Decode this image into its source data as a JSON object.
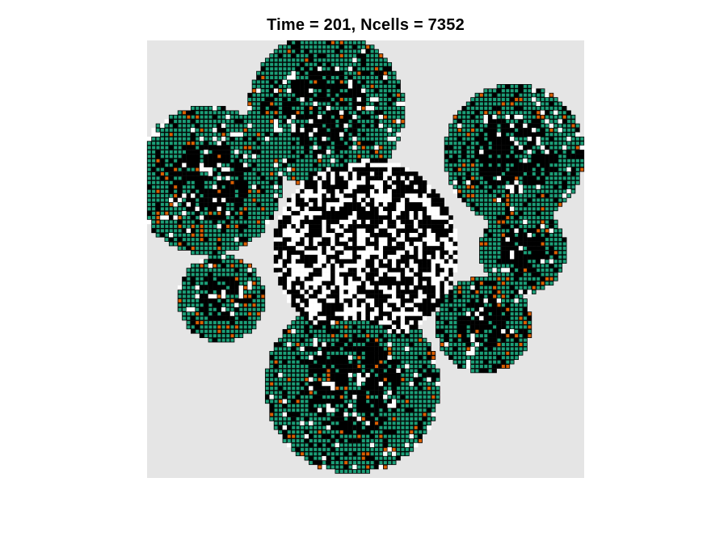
{
  "chart_data": {
    "type": "heatmap",
    "title": "Time = 201, Ncells = 7352",
    "xlabel": "",
    "ylabel": "",
    "axes_visible": false,
    "grid": false,
    "legend": "none",
    "time": 201,
    "ncells": 7352,
    "grid_size": [
      100,
      100
    ],
    "cell_states": [
      "empty",
      "dead",
      "proliferating",
      "mutant"
    ],
    "colors": {
      "background": "#e5e5e5",
      "empty": "#ffffff",
      "dead": "#000000",
      "proliferating": "#1b9e77",
      "mutant": "#d95f02",
      "cell_edge": "#000000"
    },
    "lobes": [
      {
        "cx": 41,
        "cy": 16,
        "r": 18
      },
      {
        "cx": 84,
        "cy": 26,
        "r": 16
      },
      {
        "cx": 14,
        "cy": 32,
        "r": 17
      },
      {
        "cx": 86,
        "cy": 48,
        "r": 10
      },
      {
        "cx": 17,
        "cy": 59,
        "r": 10
      },
      {
        "cx": 77,
        "cy": 65,
        "r": 11
      },
      {
        "cx": 47,
        "cy": 79,
        "r": 20
      }
    ]
  }
}
